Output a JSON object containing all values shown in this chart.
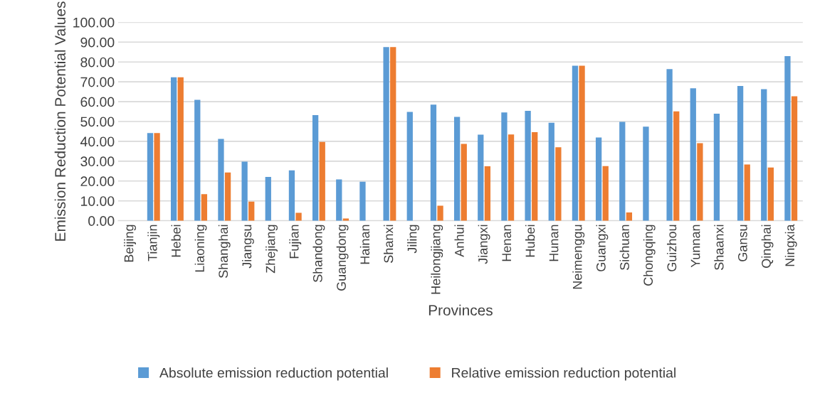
{
  "chart_data": {
    "type": "bar",
    "xlabel": "Provinces",
    "ylabel": "Emission Reduction Potential Values",
    "categories": [
      "Beijing",
      "Tianjin",
      "Hebei",
      "Liaoning",
      "Shanghai",
      "Jiangsu",
      "Zhejiang",
      "Fujian",
      "Shandong",
      "Guangdong",
      "Hainan",
      "Shanxi",
      "Jiling",
      "Heilongjiang",
      "Anhui",
      "Jiangxi",
      "Henan",
      "Hubei",
      "Hunan",
      "Neimenggu",
      "Guangxi",
      "Sichuan",
      "Chongqing",
      "Guizhou",
      "Yunnan",
      "Shaanxi",
      "Gansu",
      "Qinghai",
      "Ningxia"
    ],
    "series": [
      {
        "name": "Absolute emission reduction potential",
        "color": "#5b9bd5",
        "values": [
          0,
          44.2,
          72.3,
          60.9,
          41.2,
          29.8,
          22.1,
          25.4,
          53.2,
          20.8,
          19.7,
          87.5,
          54.8,
          58.5,
          52.3,
          43.4,
          54.6,
          55.4,
          49.4,
          78.1,
          41.9,
          49.8,
          47.4,
          76.4,
          66.7,
          53.9,
          67.9,
          66.3,
          82.9
        ]
      },
      {
        "name": "Relative emission reduction potential",
        "color": "#ed7d31",
        "values": [
          0,
          44.2,
          72.3,
          13.4,
          24.3,
          9.6,
          0,
          4.0,
          39.7,
          1.1,
          0,
          87.5,
          0,
          7.6,
          38.7,
          27.4,
          43.5,
          44.6,
          37.0,
          78.1,
          27.5,
          4.2,
          0,
          55.1,
          39.1,
          0,
          28.3,
          26.8,
          62.7
        ]
      }
    ],
    "ylim": [
      0,
      100
    ],
    "yticks": [
      {
        "value": 0,
        "label": "0.00"
      },
      {
        "value": 10,
        "label": "10.00"
      },
      {
        "value": 20,
        "label": "20.00"
      },
      {
        "value": 30,
        "label": "30.00"
      },
      {
        "value": 40,
        "label": "40.00"
      },
      {
        "value": 50,
        "label": "50.00"
      },
      {
        "value": 60,
        "label": "60.00"
      },
      {
        "value": 70,
        "label": "70.00"
      },
      {
        "value": 80,
        "label": "80.00"
      },
      {
        "value": 90,
        "label": "90.00"
      },
      {
        "value": 100,
        "label": "100.00"
      }
    ],
    "grid": "y",
    "legend": "bottom"
  }
}
